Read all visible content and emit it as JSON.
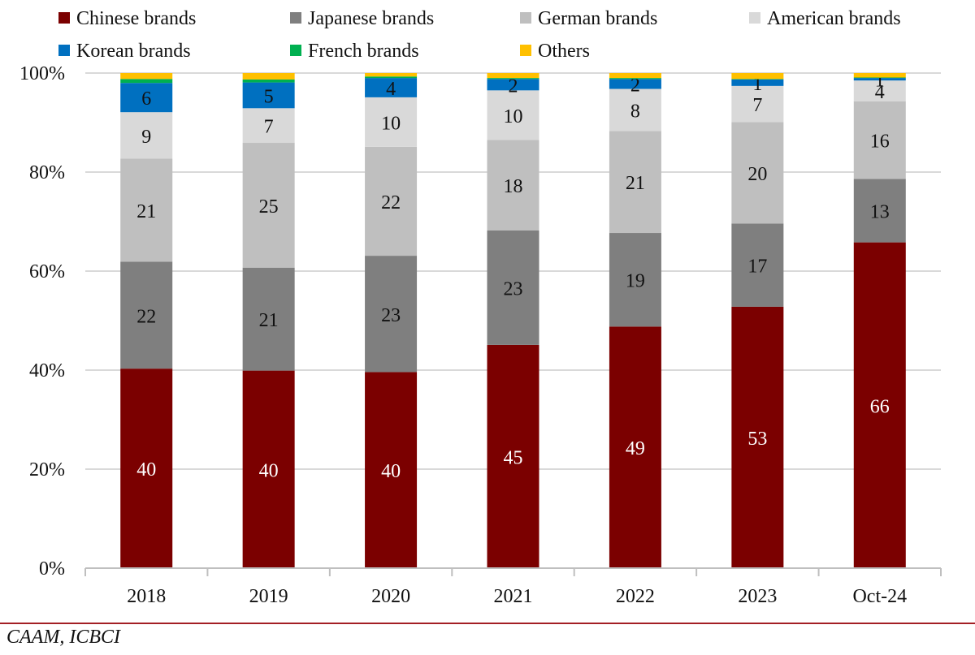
{
  "chart_data": {
    "type": "bar",
    "stacked": true,
    "percent_stacked": true,
    "categories": [
      "2018",
      "2019",
      "2020",
      "2021",
      "2022",
      "2023",
      "Oct-24"
    ],
    "ylim": [
      0,
      100
    ],
    "y_ticks": [
      "0%",
      "20%",
      "40%",
      "60%",
      "80%",
      "100%"
    ],
    "grid": true,
    "legend_position": "top",
    "series": [
      {
        "name": "Chinese brands",
        "color": "#7b0000",
        "values": [
          40.3,
          39.9,
          39.6,
          45.1,
          48.8,
          52.8,
          65.8
        ],
        "labels": [
          "40",
          "40",
          "40",
          "45",
          "49",
          "53",
          "66"
        ],
        "label_color": "#ffffff"
      },
      {
        "name": "Japanese brands",
        "color": "#7f7f7f",
        "values": [
          21.6,
          20.8,
          23.5,
          23.1,
          18.9,
          16.8,
          12.8
        ],
        "labels": [
          "22",
          "21",
          "23",
          "23",
          "19",
          "17",
          "13"
        ],
        "label_color": "#111111"
      },
      {
        "name": "German brands",
        "color": "#bfbfbf",
        "values": [
          20.8,
          25.2,
          22.0,
          18.3,
          20.6,
          20.5,
          15.7
        ],
        "labels": [
          "21",
          "25",
          "22",
          "18",
          "21",
          "20",
          "16"
        ],
        "label_color": "#111111"
      },
      {
        "name": "American brands",
        "color": "#d9d9d9",
        "values": [
          9.4,
          7.0,
          10.0,
          10.0,
          8.5,
          7.3,
          4.2
        ],
        "labels": [
          "9",
          "7",
          "10",
          "10",
          "8",
          "7",
          "4"
        ],
        "label_color": "#111111"
      },
      {
        "name": "Korean brands",
        "color": "#0070c0",
        "values": [
          5.9,
          5.2,
          3.9,
          2.3,
          2.0,
          1.3,
          0.5
        ],
        "labels": [
          "6",
          "5",
          "4",
          "2",
          "2",
          "1",
          "1"
        ],
        "label_color": "#111111"
      },
      {
        "name": "French brands",
        "color": "#00b050",
        "values": [
          0.8,
          0.6,
          0.3,
          0.2,
          0.2,
          0.1,
          0.1
        ],
        "labels": [
          "",
          "",
          "",
          "",
          "",
          "",
          ""
        ],
        "label_color": "#111111"
      },
      {
        "name": "Others",
        "color": "#ffc000",
        "values": [
          1.2,
          1.3,
          0.7,
          1.0,
          1.0,
          1.2,
          0.9
        ],
        "labels": [
          "",
          "",
          "",
          "",
          "",
          "",
          ""
        ],
        "label_color": "#111111"
      }
    ]
  },
  "source": "CAAM, ICBCI"
}
